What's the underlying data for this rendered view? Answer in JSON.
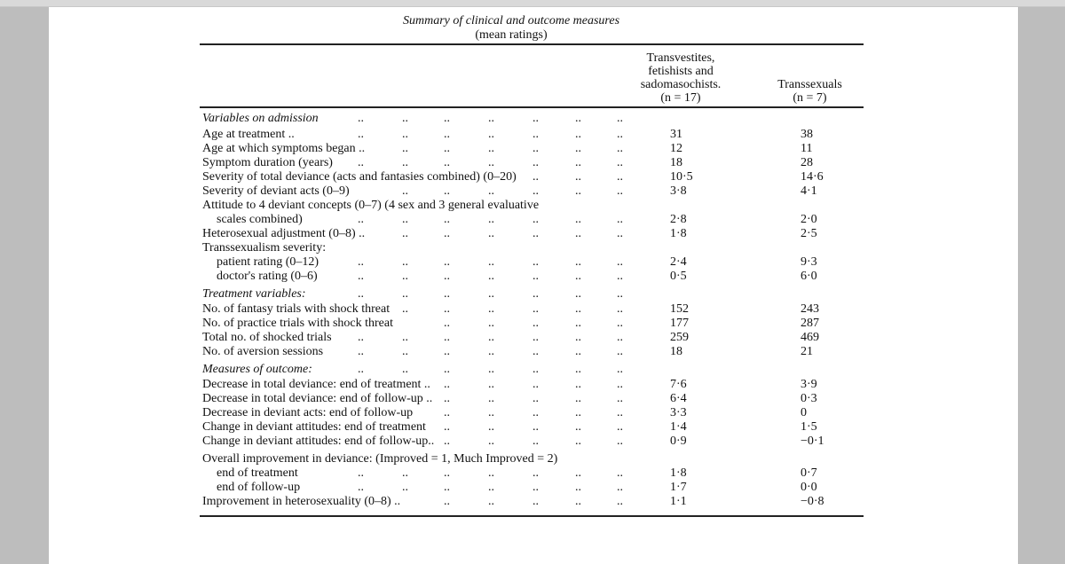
{
  "table": {
    "title": "Summary of clinical and outcome measures",
    "subtitle": "(mean ratings)",
    "leader": "..",
    "columns": [
      {
        "lines": [
          "Transvestites,",
          "fetishists and",
          "sadomasochists.",
          "(n = 17)"
        ]
      },
      {
        "lines": [
          "Transsexuals",
          "(n = 7)"
        ]
      }
    ],
    "rows": [
      {
        "label": "Variables on admission",
        "section": true
      },
      {
        "label": "Age at treatment ..",
        "v1": "31",
        "v2": "38"
      },
      {
        "label": "Age at which symptoms began ..",
        "v1": "12",
        "v2": "11"
      },
      {
        "label": "Symptom duration (years)",
        "v1": "18",
        "v2": "28"
      },
      {
        "label": "Severity of total deviance (acts and fantasies combined) (0–20)",
        "v1": "10·5",
        "v2": "14·6"
      },
      {
        "label": "Severity of deviant acts (0–9)",
        "v1": "3·8",
        "v2": "4·1"
      },
      {
        "label": "Attitude to 4 deviant concepts (0–7) (4 sex and 3 general evaluative",
        "nodots": true
      },
      {
        "label": "scales combined)",
        "indent": true,
        "v1": "2·8",
        "v2": "2·0"
      },
      {
        "label": "Heterosexual adjustment (0–8) ..",
        "v1": "1·8",
        "v2": "2·5"
      },
      {
        "label": "Transsexualism severity:",
        "nodots": true
      },
      {
        "label": "patient rating (0–12)",
        "indent": true,
        "v1": "2·4",
        "v2": "9·3"
      },
      {
        "label": "doctor's rating (0–6)",
        "indent": true,
        "v1": "0·5",
        "v2": "6·0"
      },
      {
        "label": "Treatment variables:",
        "section": true
      },
      {
        "label": "No. of fantasy trials with shock threat",
        "v1": "152",
        "v2": "243"
      },
      {
        "label": "No. of practice trials with shock threat",
        "v1": "177",
        "v2": "287"
      },
      {
        "label": "Total no. of shocked trials",
        "v1": "259",
        "v2": "469"
      },
      {
        "label": "No. of aversion sessions",
        "v1": "18",
        "v2": "21"
      },
      {
        "label": "Measures of outcome:",
        "section": true
      },
      {
        "label": "Decrease in total deviance: end of treatment ..",
        "v1": "7·6",
        "v2": "3·9"
      },
      {
        "label": "Decrease in total deviance: end of follow-up ..",
        "v1": "6·4",
        "v2": "0·3"
      },
      {
        "label": "Decrease in deviant acts: end of follow-up",
        "v1": "3·3",
        "v2": "0"
      },
      {
        "label": "Change in deviant attitudes: end of treatment",
        "v1": "1·4",
        "v2": "1·5"
      },
      {
        "label": "Change in deviant attitudes: end of follow-up..",
        "v1": "0·9",
        "v2": "−0·1"
      },
      {
        "label": "Overall improvement in deviance: (Improved = 1, Much Improved = 2)",
        "nodots": true
      },
      {
        "label": "end of treatment",
        "indent": true,
        "v1": "1·8",
        "v2": "0·7"
      },
      {
        "label": "end of follow-up",
        "indent": true,
        "v1": "1·7",
        "v2": "0·0"
      },
      {
        "label": "Improvement in heterosexuality (0–8) ..",
        "v1": "1·1",
        "v2": "−0·8"
      }
    ]
  }
}
